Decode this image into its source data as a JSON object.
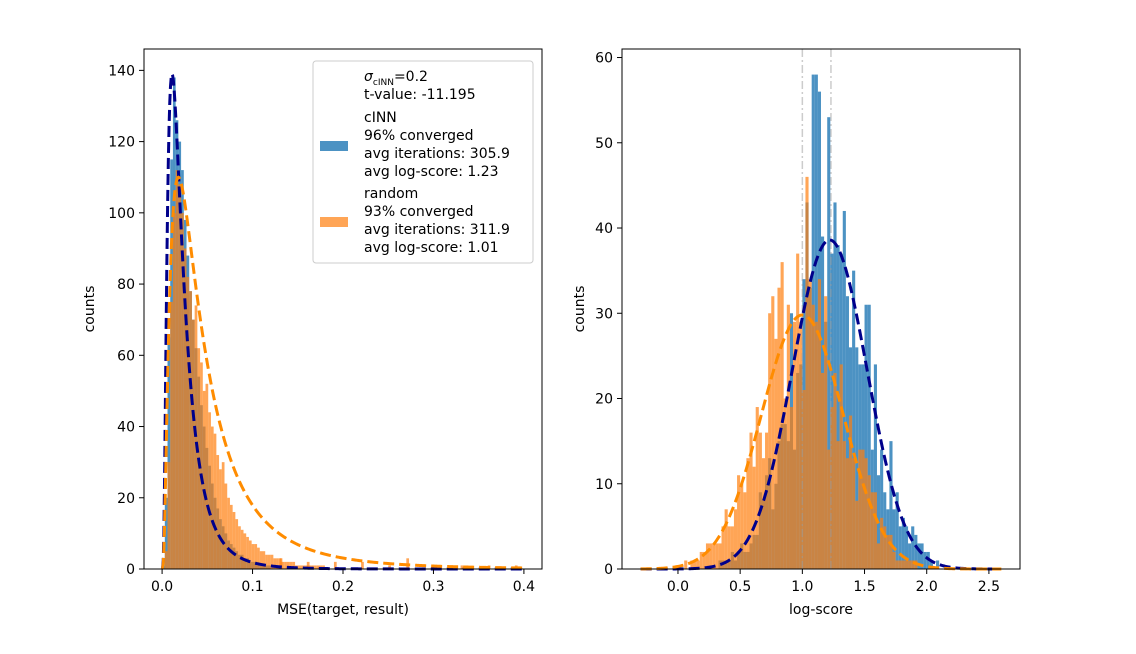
{
  "chart_data": [
    {
      "type": "histogram",
      "xlabel": "MSE(target, result)",
      "ylabel": "counts",
      "xlim": [
        -0.02,
        0.42
      ],
      "ylim": [
        0,
        146
      ],
      "xticks": [
        "0.0",
        "0.1",
        "0.2",
        "0.3",
        "0.4"
      ],
      "yticks": [
        "0",
        "20",
        "40",
        "60",
        "80",
        "100",
        "120",
        "140"
      ],
      "legend": {
        "placement": "top-right",
        "sigma_symbol": "σ",
        "sigma_subscript": "cINN",
        "sigma_value": "=0.2",
        "t_value": "t-value: -11.195",
        "entries": [
          {
            "name": "cINN",
            "lines": [
              "cINN",
              "96% converged",
              "avg iterations: 305.9",
              "avg log-score: 1.23"
            ],
            "color": "#1f77b4"
          },
          {
            "name": "random",
            "lines": [
              "random",
              "93% converged",
              "avg iterations: 311.9",
              "avg log-score: 1.01"
            ],
            "color": "#ff7f0e"
          }
        ]
      },
      "bin_width": 0.003,
      "bin_start": 0.0,
      "series": [
        {
          "name": "cINN",
          "color": "#1f77b4",
          "counts": [
            3,
            20,
            65,
            115,
            138,
            126,
            120,
            112,
            98,
            88,
            78,
            70,
            62,
            54,
            46,
            40,
            34,
            29,
            24,
            20,
            17,
            14,
            12,
            10,
            8,
            7,
            6,
            5,
            4,
            4,
            3,
            3,
            2,
            2,
            2,
            1,
            1,
            1,
            1,
            1
          ],
          "fit_curve": {
            "style": "dashed",
            "color": "#00008b",
            "peak_x": 0.011,
            "peak_y": 139
          }
        },
        {
          "name": "random",
          "color": "#ff7f0e",
          "counts": [
            0,
            5,
            30,
            75,
            100,
            112,
            108,
            100,
            90,
            82,
            78,
            70,
            74,
            62,
            58,
            50,
            52,
            44,
            40,
            38,
            32,
            28,
            30,
            24,
            20,
            18,
            16,
            14,
            12,
            11,
            10,
            9,
            8,
            7,
            7,
            6,
            5,
            5,
            4,
            4,
            4,
            3,
            3,
            3,
            2,
            2,
            2,
            2,
            2,
            1,
            1,
            1,
            1,
            1,
            1,
            1,
            1,
            1,
            1,
            1
          ],
          "fit_curve": {
            "style": "dashed",
            "color": "#ff8c00",
            "peak_x": 0.018,
            "peak_y": 110
          }
        }
      ]
    },
    {
      "type": "histogram",
      "xlabel": "log-score",
      "ylabel": "counts",
      "xlim": [
        -0.45,
        2.75
      ],
      "ylim": [
        0,
        61
      ],
      "xticks": [
        "0.0",
        "0.5",
        "1.0",
        "1.5",
        "2.0",
        "2.5"
      ],
      "yticks": [
        "0",
        "10",
        "20",
        "30",
        "40",
        "50",
        "60"
      ],
      "bin_width": 0.025,
      "series": [
        {
          "name": "cINN",
          "color": "#1f77b4",
          "mean": 1.23,
          "std": 0.3,
          "total": 800,
          "peak_counts": {
            "1.1": 58,
            "1.15": 56,
            "1.25": 42,
            "1.35": 42
          },
          "fit_curve": {
            "style": "dashed",
            "color": "#00008b",
            "mean": 1.22,
            "std": 0.3,
            "peak_y": 38.6
          }
        },
        {
          "name": "random",
          "color": "#ff7f0e",
          "mean": 1.01,
          "std": 0.33,
          "total": 750,
          "peak_counts": {
            "1.05": 46,
            "0.95": 38,
            "1.0": 36
          },
          "fit_curve": {
            "style": "dashed",
            "color": "#ff8c00",
            "mean": 1.0,
            "std": 0.33,
            "peak_y": 29.8
          }
        }
      ],
      "mean_lines": [
        1.0,
        1.23
      ]
    }
  ]
}
